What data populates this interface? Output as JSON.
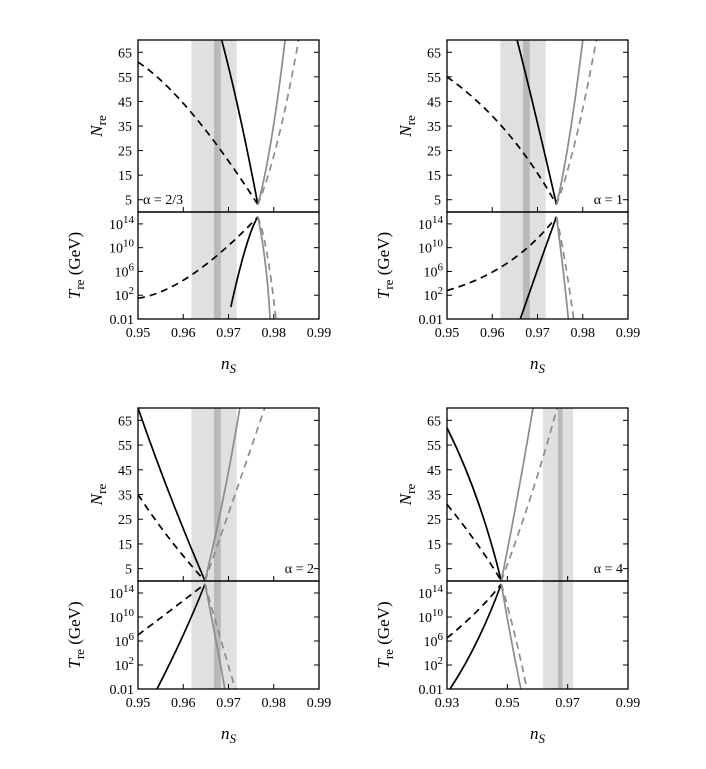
{
  "chart_data": [
    {
      "type": "line",
      "annotation": "α = 2/3",
      "xlabel_base": "n",
      "xlabel_sub": "S",
      "xlim": [
        0.95,
        0.99
      ],
      "x_tick_labels": [
        "0.95",
        "0.96",
        "0.97",
        "0.98",
        "0.99"
      ],
      "x_ticks": [
        0.95,
        0.96,
        0.97,
        0.98,
        0.99
      ],
      "top_ylabel_base": "N",
      "top_ylabel_sub": "re",
      "top_ylim": [
        0,
        70
      ],
      "top_y_ticks": [
        5,
        15,
        25,
        35,
        45,
        55,
        65
      ],
      "top_y_tick_labels": [
        "5",
        "15",
        "25",
        "35",
        "45",
        "55",
        "65"
      ],
      "bottom_ylabel_base": "T",
      "bottom_ylabel_sub": "re",
      "bottom_ylabel_unit": "(GeV)",
      "bottom_ylim_log10": [
        -2,
        16
      ],
      "bottom_y_ticks_log10": [
        -2,
        2,
        6,
        10,
        14
      ],
      "bottom_y_tick_labels": [
        {
          "base": "0.01",
          "exp": ""
        },
        {
          "base": "10",
          "exp": "2"
        },
        {
          "base": "10",
          "exp": "6"
        },
        {
          "base": "10",
          "exp": "10"
        },
        {
          "base": "10",
          "exp": "14"
        }
      ],
      "bands": {
        "outer": [
          0.9618,
          0.9718
        ],
        "inner": [
          0.9668,
          0.9683
        ]
      },
      "series": [
        {
          "style": "black-solid",
          "nre": [
            [
              0.9685,
              70
            ],
            [
              0.9724,
              40
            ],
            [
              0.9765,
              3
            ]
          ],
          "tre": [
            [
              0.9765,
              15.2
            ],
            [
              0.9738,
              10
            ],
            [
              0.9705,
              0
            ]
          ]
        },
        {
          "style": "black-dashed",
          "nre": [
            [
              0.95,
              61
            ],
            [
              0.962,
              40
            ],
            [
              0.9765,
              3
            ]
          ],
          "tre": [
            [
              0.95,
              1.5
            ],
            [
              0.962,
              5.5
            ],
            [
              0.9765,
              15.2
            ]
          ]
        },
        {
          "style": "gray-solid",
          "nre": [
            [
              0.9765,
              3
            ],
            [
              0.9795,
              30
            ],
            [
              0.9825,
              70
            ]
          ],
          "tre": [
            [
              0.9765,
              15.2
            ],
            [
              0.9782,
              7
            ],
            [
              0.9792,
              -2
            ]
          ]
        },
        {
          "style": "gray-dashed",
          "nre": [
            [
              0.9765,
              3
            ],
            [
              0.981,
              30
            ],
            [
              0.9855,
              70
            ]
          ],
          "tre": [
            [
              0.9765,
              15.2
            ],
            [
              0.9785,
              9
            ],
            [
              0.9805,
              -2
            ]
          ]
        }
      ]
    },
    {
      "type": "line",
      "annotation": "α = 1",
      "xlabel_base": "n",
      "xlabel_sub": "S",
      "xlim": [
        0.95,
        0.99
      ],
      "x_tick_labels": [
        "0.95",
        "0.96",
        "0.97",
        "0.98",
        "0.99"
      ],
      "x_ticks": [
        0.95,
        0.96,
        0.97,
        0.98,
        0.99
      ],
      "top_ylabel_base": "N",
      "top_ylabel_sub": "re",
      "top_ylim": [
        0,
        70
      ],
      "top_y_ticks": [
        5,
        15,
        25,
        35,
        45,
        55,
        65
      ],
      "top_y_tick_labels": [
        "5",
        "15",
        "25",
        "35",
        "45",
        "55",
        "65"
      ],
      "bottom_ylabel_base": "T",
      "bottom_ylabel_sub": "re",
      "bottom_ylabel_unit": "(GeV)",
      "bottom_ylim_log10": [
        -2,
        16
      ],
      "bottom_y_ticks_log10": [
        -2,
        2,
        6,
        10,
        14
      ],
      "bottom_y_tick_labels": [
        {
          "base": "0.01",
          "exp": ""
        },
        {
          "base": "10",
          "exp": "2"
        },
        {
          "base": "10",
          "exp": "6"
        },
        {
          "base": "10",
          "exp": "10"
        },
        {
          "base": "10",
          "exp": "14"
        }
      ],
      "bands": {
        "outer": [
          0.9618,
          0.9718
        ],
        "inner": [
          0.9668,
          0.9683
        ]
      },
      "series": [
        {
          "style": "black-solid",
          "nre": [
            [
              0.9655,
              70
            ],
            [
              0.9695,
              40
            ],
            [
              0.9742,
              3
            ]
          ],
          "tre": [
            [
              0.9742,
              15.2
            ],
            [
              0.9708,
              8
            ],
            [
              0.9662,
              -2
            ]
          ]
        },
        {
          "style": "black-dashed",
          "nre": [
            [
              0.95,
              55
            ],
            [
              0.963,
              33
            ],
            [
              0.9742,
              3
            ]
          ],
          "tre": [
            [
              0.95,
              2.8
            ],
            [
              0.9635,
              7.5
            ],
            [
              0.9742,
              15.2
            ]
          ]
        },
        {
          "style": "gray-solid",
          "nre": [
            [
              0.9742,
              3
            ],
            [
              0.977,
              30
            ],
            [
              0.98,
              70
            ]
          ],
          "tre": [
            [
              0.9742,
              15.2
            ],
            [
              0.9757,
              6
            ],
            [
              0.9768,
              -2
            ]
          ]
        },
        {
          "style": "gray-dashed",
          "nre": [
            [
              0.9742,
              3
            ],
            [
              0.9785,
              30
            ],
            [
              0.983,
              70
            ]
          ],
          "tre": [
            [
              0.9742,
              15.2
            ],
            [
              0.976,
              8
            ],
            [
              0.978,
              -2
            ]
          ]
        }
      ]
    },
    {
      "type": "line",
      "annotation": "α = 2",
      "xlabel_base": "n",
      "xlabel_sub": "S",
      "xlim": [
        0.95,
        0.99
      ],
      "x_tick_labels": [
        "0.95",
        "0.96",
        "0.97",
        "0.98",
        "0.99"
      ],
      "x_ticks": [
        0.95,
        0.96,
        0.97,
        0.98,
        0.99
      ],
      "top_ylabel_base": "N",
      "top_ylabel_sub": "re",
      "top_ylim": [
        0,
        70
      ],
      "top_y_ticks": [
        5,
        15,
        25,
        35,
        45,
        55,
        65
      ],
      "top_y_tick_labels": [
        "5",
        "15",
        "25",
        "35",
        "45",
        "55",
        "65"
      ],
      "bottom_ylabel_base": "T",
      "bottom_ylabel_sub": "re",
      "bottom_ylabel_unit": "(GeV)",
      "bottom_ylim_log10": [
        -2,
        16
      ],
      "bottom_y_ticks_log10": [
        -2,
        2,
        6,
        10,
        14
      ],
      "bottom_y_tick_labels": [
        {
          "base": "0.01",
          "exp": ""
        },
        {
          "base": "10",
          "exp": "2"
        },
        {
          "base": "10",
          "exp": "6"
        },
        {
          "base": "10",
          "exp": "10"
        },
        {
          "base": "10",
          "exp": "14"
        }
      ],
      "bands": {
        "outer": [
          0.9618,
          0.9718
        ],
        "inner": [
          0.9668,
          0.9683
        ]
      },
      "series": [
        {
          "style": "black-solid",
          "nre": [
            [
              0.95,
              70
            ],
            [
              0.957,
              35
            ],
            [
              0.9648,
              0
            ]
          ],
          "tre": [
            [
              0.9648,
              15.5
            ],
            [
              0.96,
              7
            ],
            [
              0.9542,
              -2
            ]
          ]
        },
        {
          "style": "black-dashed",
          "nre": [
            [
              0.95,
              35
            ],
            [
              0.957,
              17
            ],
            [
              0.9648,
              0
            ]
          ],
          "tre": [
            [
              0.95,
              7
            ],
            [
              0.957,
              11
            ],
            [
              0.9648,
              15.5
            ]
          ]
        },
        {
          "style": "gray-solid",
          "nre": [
            [
              0.9648,
              0
            ],
            [
              0.969,
              35
            ],
            [
              0.9725,
              70
            ]
          ],
          "tre": [
            [
              0.9648,
              15.5
            ],
            [
              0.967,
              7
            ],
            [
              0.9692,
              -2
            ]
          ]
        },
        {
          "style": "gray-dashed",
          "nre": [
            [
              0.9648,
              0
            ],
            [
              0.972,
              38
            ],
            [
              0.978,
              70
            ]
          ],
          "tre": [
            [
              0.9648,
              15.5
            ],
            [
              0.968,
              7
            ],
            [
              0.9715,
              -2
            ]
          ]
        }
      ]
    },
    {
      "type": "line",
      "annotation": "α = 4",
      "xlabel_base": "n",
      "xlabel_sub": "S",
      "xlim": [
        0.93,
        0.99
      ],
      "x_tick_labels": [
        "0.93",
        "0.95",
        "0.97",
        "0.99"
      ],
      "x_ticks": [
        0.93,
        0.95,
        0.97,
        0.99
      ],
      "top_ylabel_base": "N",
      "top_ylabel_sub": "re",
      "top_ylim": [
        0,
        70
      ],
      "top_y_ticks": [
        5,
        15,
        25,
        35,
        45,
        55,
        65
      ],
      "top_y_tick_labels": [
        "5",
        "15",
        "25",
        "35",
        "45",
        "55",
        "65"
      ],
      "bottom_ylabel_base": "T",
      "bottom_ylabel_sub": "re",
      "bottom_ylabel_unit": "(GeV)",
      "bottom_ylim_log10": [
        -2,
        16
      ],
      "bottom_y_ticks_log10": [
        -2,
        2,
        6,
        10,
        14
      ],
      "bottom_y_tick_labels": [
        {
          "base": "0.01",
          "exp": ""
        },
        {
          "base": "10",
          "exp": "2"
        },
        {
          "base": "10",
          "exp": "6"
        },
        {
          "base": "10",
          "exp": "10"
        },
        {
          "base": "10",
          "exp": "14"
        }
      ],
      "bands": {
        "outer": [
          0.9618,
          0.9718
        ],
        "inner": [
          0.9668,
          0.9683
        ]
      },
      "series": [
        {
          "style": "black-solid",
          "nre": [
            [
              0.93,
              62
            ],
            [
              0.94,
              33
            ],
            [
              0.948,
              0
            ]
          ],
          "tre": [
            [
              0.948,
              15.5
            ],
            [
              0.94,
              6
            ],
            [
              0.931,
              -2
            ]
          ]
        },
        {
          "style": "black-dashed",
          "nre": [
            [
              0.93,
              31
            ],
            [
              0.94,
              15
            ],
            [
              0.948,
              0
            ]
          ],
          "tre": [
            [
              0.93,
              6.5
            ],
            [
              0.94,
              11
            ],
            [
              0.948,
              15.5
            ]
          ]
        },
        {
          "style": "gray-solid",
          "nre": [
            [
              0.948,
              0
            ],
            [
              0.9535,
              35
            ],
            [
              0.9585,
              70
            ]
          ],
          "tre": [
            [
              0.948,
              15.5
            ],
            [
              0.951,
              7
            ],
            [
              0.9545,
              -2
            ]
          ]
        },
        {
          "style": "gray-dashed",
          "nre": [
            [
              0.948,
              0
            ],
            [
              0.958,
              35
            ],
            [
              0.9665,
              70
            ]
          ],
          "tre": [
            [
              0.948,
              15.5
            ],
            [
              0.9525,
              7
            ],
            [
              0.9565,
              -2
            ]
          ]
        }
      ]
    }
  ]
}
